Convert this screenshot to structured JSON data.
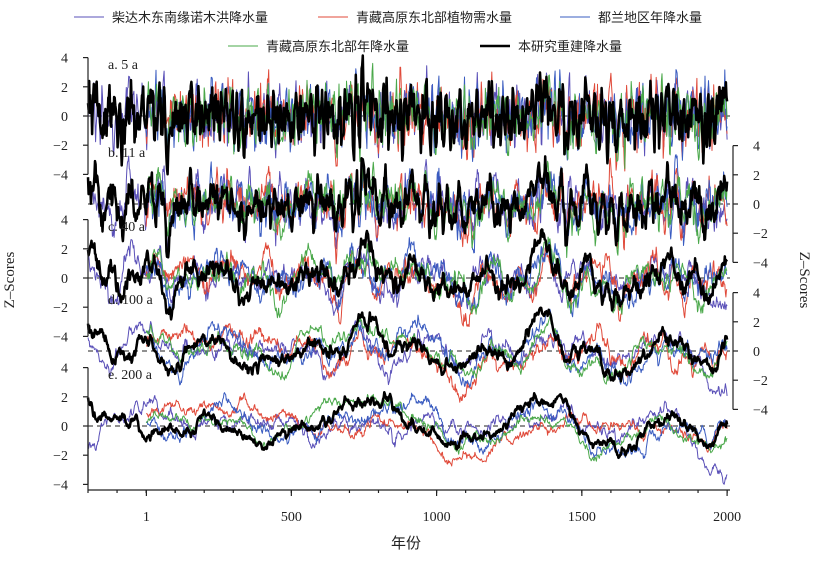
{
  "chart_data": {
    "type": "line",
    "title": "",
    "xlabel": "年份",
    "ylabel_left": "Z–Scores",
    "ylabel_right": "Z–Scores",
    "x_ticks": [
      "1",
      "500",
      "1000",
      "1500",
      "2000"
    ],
    "xlim": [
      -200,
      2010
    ],
    "legend": {
      "placement": "top",
      "entries": [
        {
          "name": "柴达木东南缘诺木洪降水量",
          "color": "#5a50b8",
          "width": 1
        },
        {
          "name": "青藏高原东北部植物需水量",
          "color": "#e04a3a",
          "width": 1
        },
        {
          "name": "都兰地区年降水量",
          "color": "#3a5cc0",
          "width": 1
        },
        {
          "name": "青藏高原东北部年降水量",
          "color": "#4aa84a",
          "width": 1
        },
        {
          "name": "本研究重建降水量",
          "color": "#000000",
          "width": 2.5
        }
      ]
    },
    "panels": [
      {
        "label": "a. 5 a",
        "y_axis": "left",
        "y_ticks": [
          "4",
          "2",
          "0",
          "−2",
          "−4"
        ],
        "ylim": [
          -4,
          4
        ],
        "smoothing_years": 5
      },
      {
        "label": "b. 11 a",
        "y_axis": "right",
        "y_ticks": [
          "4",
          "2",
          "0",
          "−2",
          "−4"
        ],
        "ylim": [
          -4,
          4
        ],
        "smoothing_years": 11
      },
      {
        "label": "c. 40 a",
        "y_axis": "left",
        "y_ticks": [
          "4",
          "2",
          "0",
          "−2",
          "−4"
        ],
        "ylim": [
          -4,
          4
        ],
        "smoothing_years": 40
      },
      {
        "label": "d. 100 a",
        "y_axis": "right",
        "y_ticks": [
          "4",
          "2",
          "0",
          "−2",
          "−4"
        ],
        "ylim": [
          -4,
          4
        ],
        "smoothing_years": 100
      },
      {
        "label": "e. 200 a",
        "y_axis": "left",
        "y_ticks": [
          "4",
          "2",
          "0",
          "−2",
          "−4"
        ],
        "ylim": [
          -4,
          4
        ],
        "smoothing_years": 200
      }
    ],
    "series_ranges": [
      {
        "name": "柴达木东南缘诺木洪降水量",
        "x_start": -200,
        "x_end": 2000
      },
      {
        "name": "青藏高原东北部植物需水量",
        "x_start": 0,
        "x_end": 2000
      },
      {
        "name": "都兰地区年降水量",
        "x_start": 0,
        "x_end": 2000
      },
      {
        "name": "青藏高原东北部年降水量",
        "x_start": 0,
        "x_end": 2000
      },
      {
        "name": "本研究重建降水量",
        "x_start": -200,
        "x_end": 2000
      }
    ]
  }
}
